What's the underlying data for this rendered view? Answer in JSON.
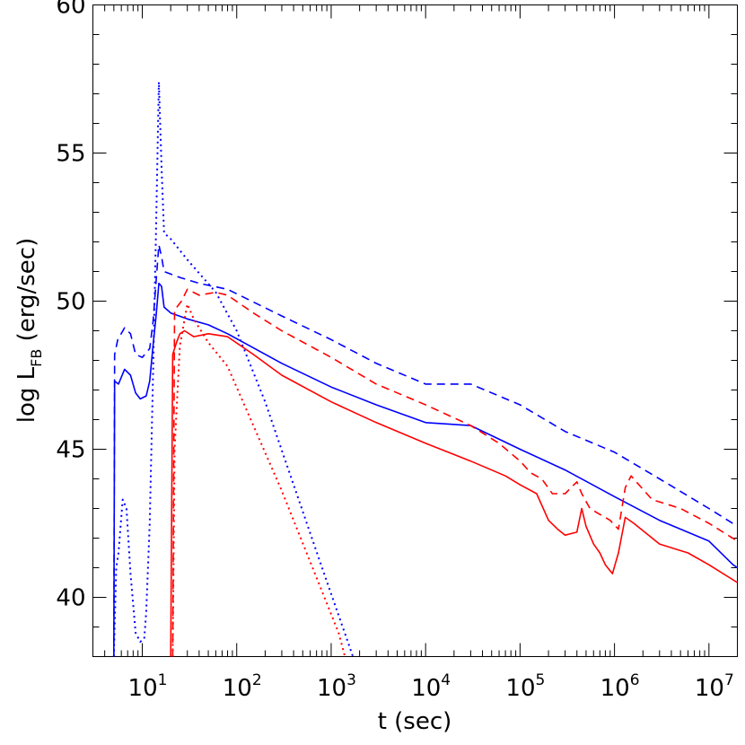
{
  "chart_data": {
    "type": "line",
    "xlabel": "t  (sec)",
    "ylabel_main": "log  L",
    "ylabel_sub": "FB",
    "ylabel_units": "  (erg/sec)",
    "xscale": "log",
    "xlim": [
      3.0,
      20000000.0
    ],
    "ylim": [
      38,
      60
    ],
    "grid": false,
    "x_ticks": [
      {
        "value": 10,
        "base": "10",
        "exp": "1"
      },
      {
        "value": 100,
        "base": "10",
        "exp": "2"
      },
      {
        "value": 1000,
        "base": "10",
        "exp": "3"
      },
      {
        "value": 10000,
        "base": "10",
        "exp": "4"
      },
      {
        "value": 100000,
        "base": "10",
        "exp": "5"
      },
      {
        "value": 1000000,
        "base": "10",
        "exp": "6"
      },
      {
        "value": 10000000,
        "base": "10",
        "exp": "7"
      }
    ],
    "y_ticks": [
      {
        "value": 40,
        "label": "40"
      },
      {
        "value": 45,
        "label": "45"
      },
      {
        "value": 50,
        "label": "50"
      },
      {
        "value": 55,
        "label": "55"
      },
      {
        "value": 60,
        "label": "60"
      }
    ],
    "colors": {
      "blue": "#0000ff",
      "red": "#ff0000",
      "axis": "#000000"
    },
    "series": [
      {
        "color": "blue",
        "style": "solid",
        "points": [
          [
            5.0,
            38
          ],
          [
            5.1,
            47.3
          ],
          [
            5.6,
            47.2
          ],
          [
            6.5,
            47.7
          ],
          [
            7.5,
            47.5
          ],
          [
            8.5,
            46.9
          ],
          [
            9.5,
            46.7
          ],
          [
            11,
            46.8
          ],
          [
            12,
            47.3
          ],
          [
            13,
            48.5
          ],
          [
            14,
            49.5
          ],
          [
            15,
            50.6
          ],
          [
            16,
            50.5
          ],
          [
            17,
            49.8
          ],
          [
            20,
            49.6
          ],
          [
            30,
            49.4
          ],
          [
            50,
            49.2
          ],
          [
            80,
            48.9
          ],
          [
            300,
            47.9
          ],
          [
            1000,
            47.1
          ],
          [
            3000,
            46.5
          ],
          [
            10000,
            45.9
          ],
          [
            30000,
            45.8
          ],
          [
            100000,
            45.0
          ],
          [
            300000,
            44.3
          ],
          [
            1000000,
            43.4
          ],
          [
            3000000,
            42.6
          ],
          [
            10000000,
            41.9
          ],
          [
            18000000,
            41.1
          ],
          [
            20000000,
            41.0
          ]
        ]
      },
      {
        "color": "blue",
        "style": "dashed",
        "points": [
          [
            5.0,
            38
          ],
          [
            5.1,
            48.2
          ],
          [
            5.5,
            48.7
          ],
          [
            6.5,
            49.1
          ],
          [
            7.5,
            48.9
          ],
          [
            8.5,
            48.2
          ],
          [
            10,
            48.1
          ],
          [
            12,
            48.4
          ],
          [
            13,
            49.3
          ],
          [
            15,
            51.9
          ],
          [
            16,
            51.5
          ],
          [
            17,
            51.0
          ],
          [
            25,
            50.8
          ],
          [
            40,
            50.6
          ],
          [
            80,
            50.4
          ],
          [
            300,
            49.5
          ],
          [
            1000,
            48.7
          ],
          [
            3000,
            47.9
          ],
          [
            10000,
            47.2
          ],
          [
            30000,
            47.2
          ],
          [
            100000,
            46.5
          ],
          [
            300000,
            45.6
          ],
          [
            1000000,
            44.9
          ],
          [
            3000000,
            44.0
          ],
          [
            10000000,
            43.0
          ],
          [
            20000000,
            42.4
          ]
        ]
      },
      {
        "color": "blue",
        "style": "dotted",
        "points": [
          [
            5.0,
            38
          ],
          [
            5.3,
            41
          ],
          [
            5.6,
            41.5
          ],
          [
            6.2,
            43.3
          ],
          [
            6.8,
            43.0
          ],
          [
            7.5,
            40.8
          ],
          [
            8.5,
            38.8
          ],
          [
            9.5,
            38.5
          ],
          [
            10.5,
            38.6
          ],
          [
            11,
            39.5
          ],
          [
            12,
            42.5
          ],
          [
            13,
            47.5
          ],
          [
            14,
            52.5
          ],
          [
            15,
            57.4
          ],
          [
            16,
            54.5
          ],
          [
            17,
            52.3
          ],
          [
            20,
            52.1
          ],
          [
            30,
            51.4
          ],
          [
            60,
            50.3
          ],
          [
            100,
            49.0
          ],
          [
            200,
            46.6
          ],
          [
            400,
            43.8
          ],
          [
            800,
            41.0
          ],
          [
            1500,
            38.5
          ],
          [
            1700,
            38.0
          ]
        ]
      },
      {
        "color": "red",
        "style": "solid",
        "points": [
          [
            20,
            38
          ],
          [
            21,
            48.2
          ],
          [
            23,
            48.6
          ],
          [
            25,
            48.9
          ],
          [
            28,
            49.0
          ],
          [
            35,
            48.8
          ],
          [
            50,
            48.9
          ],
          [
            80,
            48.8
          ],
          [
            150,
            48.2
          ],
          [
            300,
            47.5
          ],
          [
            1000,
            46.6
          ],
          [
            3000,
            45.9
          ],
          [
            10000,
            45.2
          ],
          [
            30000,
            44.6
          ],
          [
            70000,
            44.1
          ],
          [
            100000,
            43.8
          ],
          [
            150000,
            43.5
          ],
          [
            200000,
            42.6
          ],
          [
            250000,
            42.3
          ],
          [
            300000,
            42.1
          ],
          [
            400000,
            42.2
          ],
          [
            450000,
            43.0
          ],
          [
            500000,
            42.4
          ],
          [
            600000,
            41.8
          ],
          [
            700000,
            41.5
          ],
          [
            800000,
            41.1
          ],
          [
            950000,
            40.8
          ],
          [
            1100000,
            41.5
          ],
          [
            1300000,
            42.7
          ],
          [
            1600000,
            42.5
          ],
          [
            3000000,
            41.8
          ],
          [
            6000000,
            41.5
          ],
          [
            10000000,
            41.1
          ],
          [
            20000000,
            40.5
          ]
        ]
      },
      {
        "color": "red",
        "style": "dashed",
        "points": [
          [
            21,
            38
          ],
          [
            22,
            49.7
          ],
          [
            26,
            50.0
          ],
          [
            30,
            50.4
          ],
          [
            40,
            50.2
          ],
          [
            60,
            50.3
          ],
          [
            80,
            50.2
          ],
          [
            150,
            49.6
          ],
          [
            300,
            49.0
          ],
          [
            1000,
            48.1
          ],
          [
            3000,
            47.2
          ],
          [
            10000,
            46.5
          ],
          [
            30000,
            45.8
          ],
          [
            60000,
            45.2
          ],
          [
            100000,
            44.6
          ],
          [
            130000,
            44.2
          ],
          [
            170000,
            44.0
          ],
          [
            220000,
            43.5
          ],
          [
            300000,
            43.5
          ],
          [
            400000,
            43.9
          ],
          [
            450000,
            43.5
          ],
          [
            550000,
            43.0
          ],
          [
            700000,
            42.8
          ],
          [
            900000,
            42.6
          ],
          [
            1100000,
            42.3
          ],
          [
            1300000,
            43.7
          ],
          [
            1500000,
            44.1
          ],
          [
            2500000,
            43.3
          ],
          [
            5000000,
            43.0
          ],
          [
            10000000,
            42.5
          ],
          [
            20000000,
            41.9
          ]
        ]
      },
      {
        "color": "red",
        "style": "dotted",
        "points": [
          [
            21,
            38
          ],
          [
            22,
            45
          ],
          [
            25,
            48.5
          ],
          [
            30,
            49.9
          ],
          [
            35,
            49.4
          ],
          [
            50,
            48.6
          ],
          [
            80,
            47.8
          ],
          [
            150,
            45.8
          ],
          [
            300,
            43.6
          ],
          [
            600,
            41.2
          ],
          [
            1200,
            38.8
          ],
          [
            1400,
            38.0
          ]
        ]
      }
    ]
  }
}
